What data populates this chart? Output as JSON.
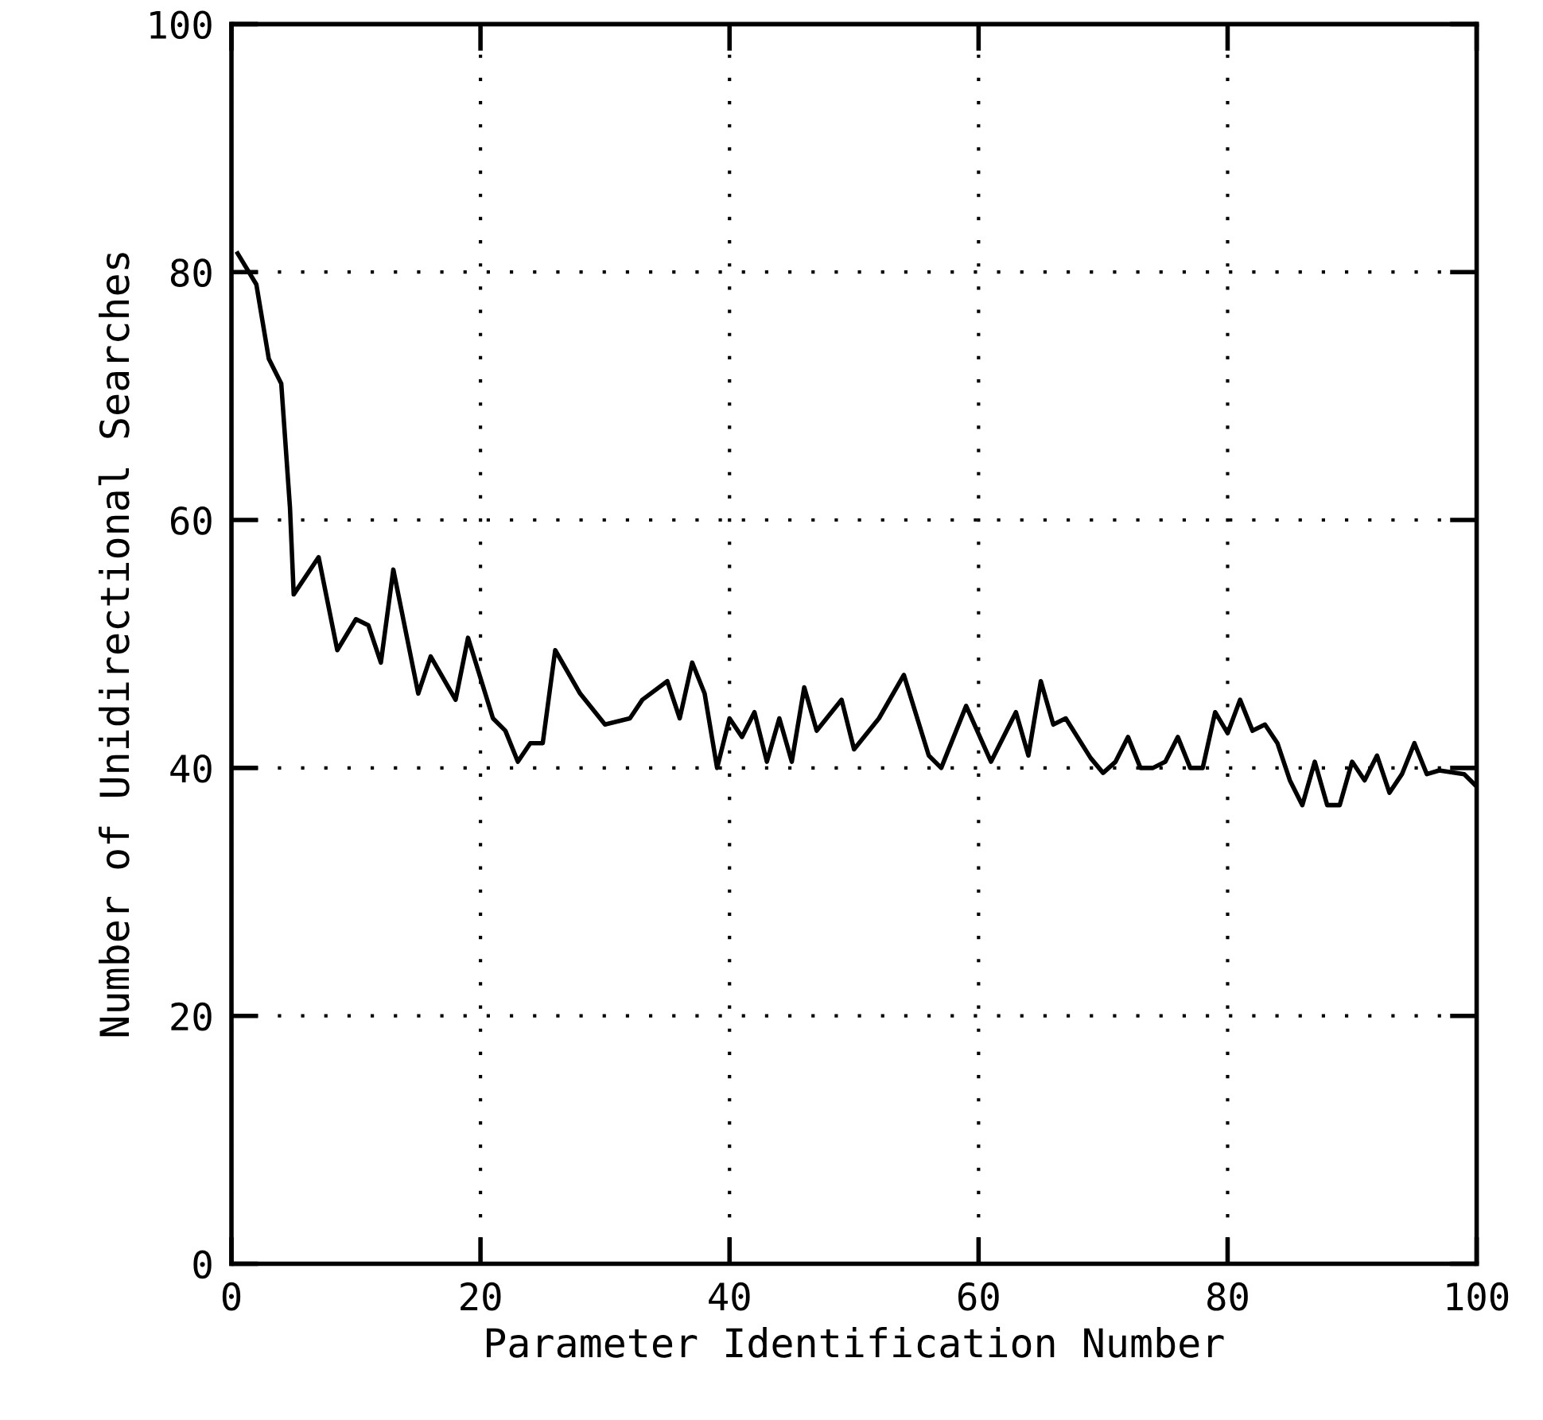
{
  "chart_data": {
    "type": "line",
    "xlabel": "Parameter Identification Number",
    "ylabel": "Number of Unidirectional Searches",
    "x": [
      0.5,
      2,
      3,
      4,
      4.7,
      5,
      7,
      8.5,
      10,
      11,
      12,
      13,
      15,
      16,
      18,
      19,
      21,
      22,
      23,
      24,
      25,
      26,
      28,
      30,
      32,
      33,
      35,
      36,
      37,
      38,
      39,
      40,
      41,
      42,
      43,
      44,
      45,
      46,
      47,
      49,
      50,
      52,
      54,
      56,
      57,
      59,
      61,
      63,
      64,
      65,
      66,
      67,
      69,
      70,
      71,
      72,
      73,
      74,
      75,
      76,
      77,
      78,
      79,
      80,
      81,
      82,
      83,
      84,
      85,
      86,
      87,
      88,
      89,
      90,
      91,
      92,
      93,
      94,
      95,
      96,
      97,
      99,
      100
    ],
    "series": [
      {
        "color": "#000000",
        "values": [
          81.5,
          79,
          73,
          71,
          61,
          54,
          57,
          49.5,
          52,
          51.5,
          48.5,
          56,
          46,
          49,
          45.5,
          50.5,
          44,
          43,
          40.5,
          42,
          42,
          49.5,
          46,
          43.5,
          44,
          45.5,
          47,
          44,
          48.5,
          46,
          40,
          44,
          42.5,
          44.5,
          40.5,
          44,
          40.5,
          46.5,
          43,
          45.5,
          41.5,
          44,
          47.5,
          41,
          40,
          45,
          40.5,
          44.5,
          41,
          47,
          43.5,
          44,
          40.8,
          39.6,
          40.5,
          42.5,
          40,
          40,
          40.5,
          42.5,
          40,
          40,
          44.5,
          42.8,
          45.5,
          43,
          43.5,
          42,
          39,
          37,
          40.5,
          37,
          37,
          40.5,
          39,
          41,
          38,
          39.5,
          42,
          39.5,
          39.8,
          39.5,
          38.5
        ]
      }
    ],
    "xlim": [
      0,
      100
    ],
    "ylim": [
      0,
      100
    ],
    "xticks": [
      0,
      20,
      40,
      60,
      80,
      100
    ],
    "yticks": [
      0,
      20,
      40,
      60,
      80,
      100
    ],
    "grid": true,
    "line_style": "solid",
    "marker": "none"
  }
}
